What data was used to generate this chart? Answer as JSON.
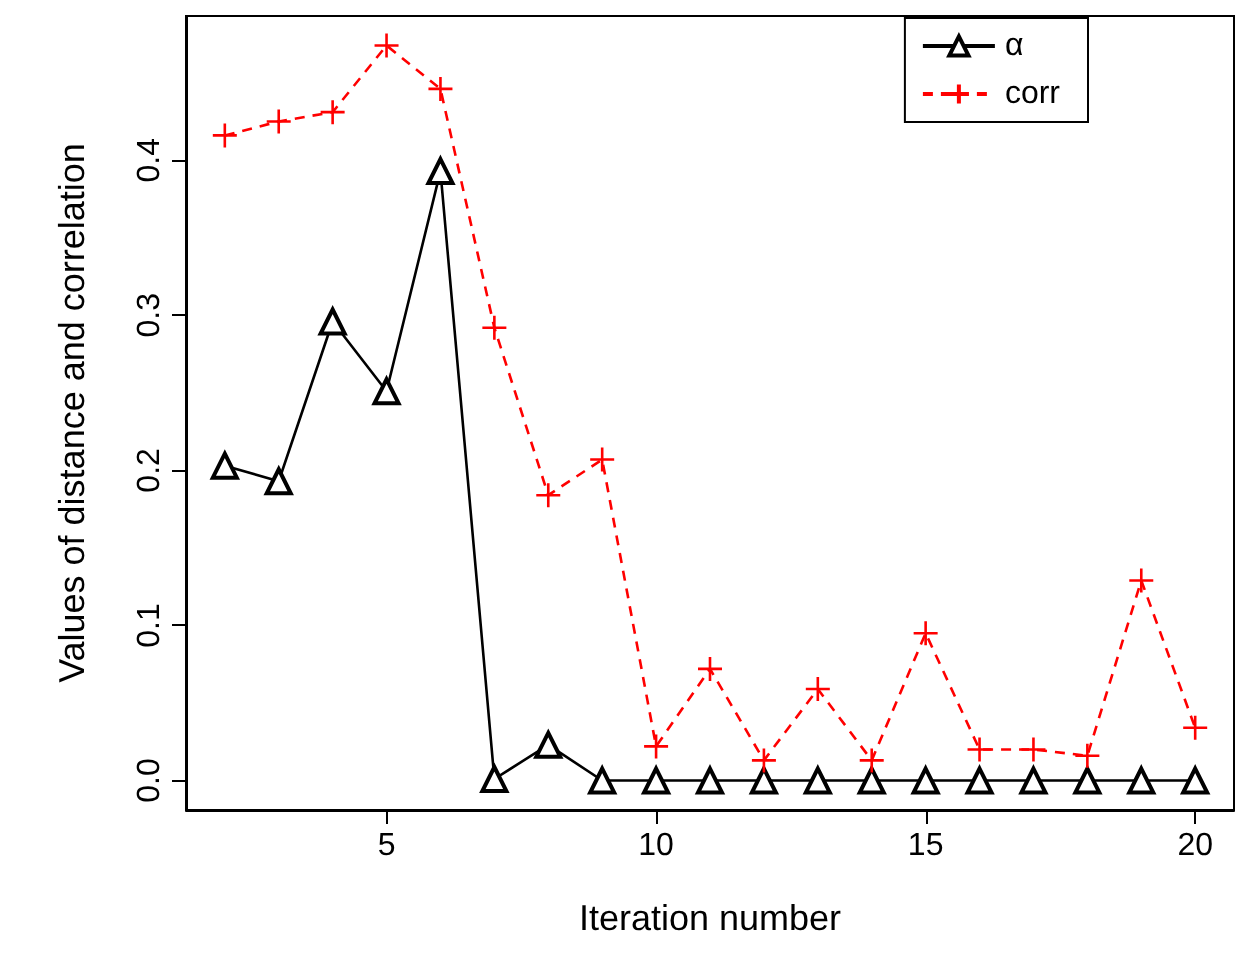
{
  "chart_data": {
    "type": "line",
    "xlabel": "Iteration number",
    "ylabel": "Values of distance and correlation",
    "x": [
      2,
      3,
      4,
      5,
      6,
      7,
      8,
      9,
      10,
      11,
      12,
      13,
      14,
      15,
      16,
      17,
      18,
      19,
      20
    ],
    "series": [
      {
        "name": "α",
        "color": "#000000",
        "marker": "triangle",
        "line_style": "solid",
        "values": [
          0.203,
          0.193,
          0.296,
          0.251,
          0.393,
          0.001,
          0.023,
          0,
          0,
          0,
          0,
          0,
          0,
          0,
          0,
          0,
          0,
          0,
          0
        ]
      },
      {
        "name": "corr",
        "color": "#ff0000",
        "marker": "cross",
        "line_style": "dashed",
        "values": [
          0.416,
          0.425,
          0.431,
          0.474,
          0.446,
          0.292,
          0.184,
          0.207,
          0.022,
          0.072,
          0.013,
          0.059,
          0.013,
          0.095,
          0.02,
          0.02,
          0.016,
          0.129,
          0.034
        ]
      }
    ],
    "xlim": [
      1.28,
      20.72
    ],
    "xticks": [
      5,
      10,
      15,
      20
    ],
    "ylim": [
      -0.019,
      0.493
    ],
    "yticks": [
      {
        "value": 0,
        "label": "0.0"
      },
      {
        "value": 0.1,
        "label": "0.1"
      },
      {
        "value": 0.2,
        "label": "0.2"
      },
      {
        "value": 0.3,
        "label": "0.3"
      },
      {
        "value": 0.4,
        "label": "0.4"
      }
    ],
    "grid": false,
    "legend": "top right"
  }
}
